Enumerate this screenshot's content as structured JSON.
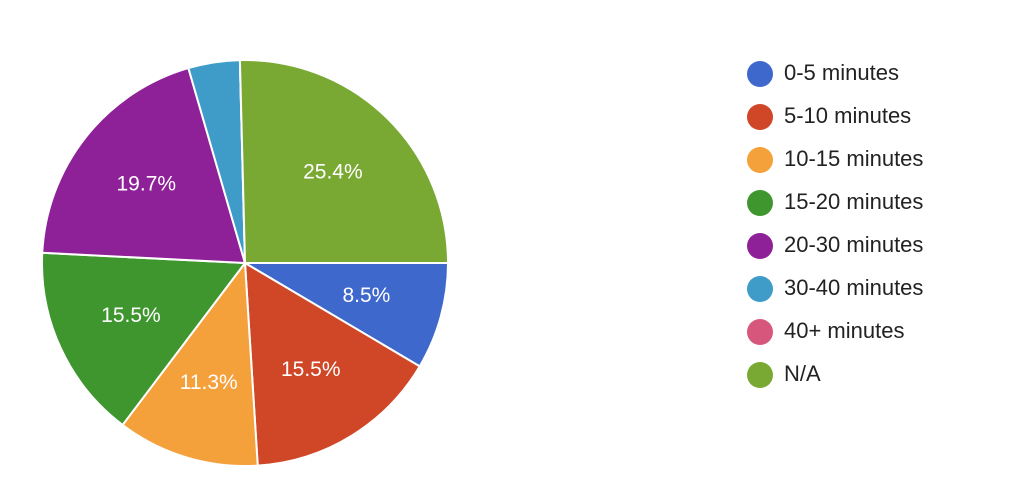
{
  "chart_data": {
    "type": "pie",
    "categories": [
      "0-5 minutes",
      "5-10 minutes",
      "10-15 minutes",
      "15-20 minutes",
      "20-30 minutes",
      "30-40 minutes",
      "40+ minutes",
      "N/A"
    ],
    "values": [
      8.5,
      15.5,
      11.3,
      15.5,
      19.7,
      4.1,
      0,
      25.4
    ],
    "value_labels": [
      "8.5%",
      "15.5%",
      "11.3%",
      "15.5%",
      "19.7%",
      null,
      null,
      "25.4%"
    ],
    "colors": [
      "#3e68cc",
      "#cf4727",
      "#f4a03b",
      "#3f962f",
      "#8e2197",
      "#3f9bc8",
      "#d6577b",
      "#79a933"
    ],
    "legend": "right"
  }
}
